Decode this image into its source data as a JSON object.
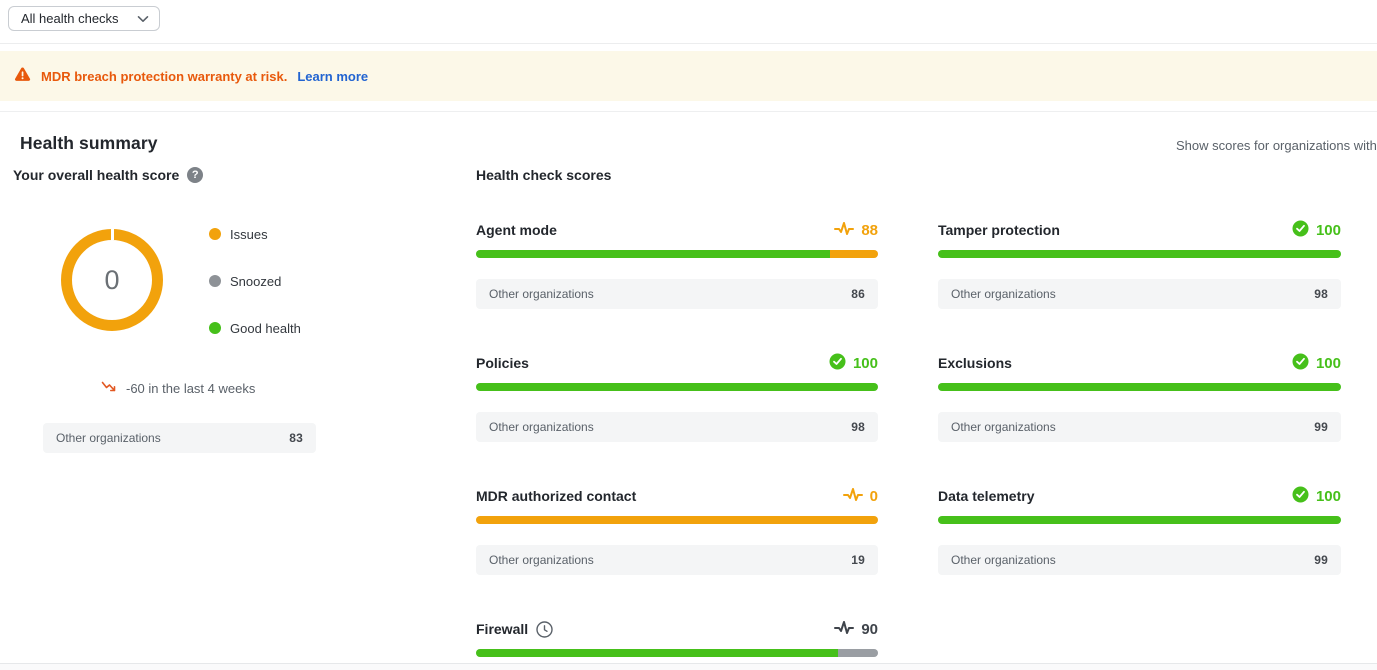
{
  "filter": {
    "value": "All health checks",
    "chevron_icon": "chevron-down"
  },
  "banner": {
    "warning_icon": "warning-triangle",
    "text": "MDR breach protection warranty at risk.",
    "link": "Learn more"
  },
  "header": {
    "title": "Health summary",
    "filter_note": "Show scores for organizations with"
  },
  "summary": {
    "subtitle": "Your overall health score",
    "help_icon": "question-mark",
    "donut": {
      "center_value": "0",
      "ring_color": "#F2A20C"
    },
    "legend": [
      {
        "label": "Issues",
        "color": "#F2A20C"
      },
      {
        "label": "Snoozed",
        "color": "#8E9297"
      },
      {
        "label": "Good health",
        "color": "#46C01A"
      }
    ],
    "trend": {
      "icon": "trending-down",
      "text": "-60 in the last 4 weeks"
    },
    "benchmark": {
      "label": "Other organizations",
      "value": "83"
    }
  },
  "health_checks": {
    "title": "Health check scores",
    "benchmark_label": "Other organizations",
    "cards": [
      {
        "title": "Agent mode",
        "score": 88,
        "score_display": "88",
        "status": "issues",
        "icon": "pulse",
        "benchmark": "86"
      },
      {
        "title": "Tamper protection",
        "score": 100,
        "score_display": "100",
        "status": "good",
        "icon": "check-circle",
        "benchmark": "98"
      },
      {
        "title": "Policies",
        "score": 100,
        "score_display": "100",
        "status": "good",
        "icon": "check-circle",
        "benchmark": "98"
      },
      {
        "title": "Exclusions",
        "score": 100,
        "score_display": "100",
        "status": "good",
        "icon": "check-circle",
        "benchmark": "99"
      },
      {
        "title": "MDR authorized contact",
        "score": 0,
        "score_display": "0",
        "status": "issues",
        "icon": "pulse",
        "benchmark": "19"
      },
      {
        "title": "Data telemetry",
        "score": 100,
        "score_display": "100",
        "status": "good",
        "icon": "check-circle",
        "benchmark": "99"
      },
      {
        "title": "Firewall",
        "score": 90,
        "score_display": "90",
        "status": "snoozed",
        "icon": "pulse",
        "snoozed_icon": "clock",
        "benchmark": null
      }
    ]
  },
  "colors": {
    "green": "#46C01A",
    "orange": "#F2A20C",
    "gray_bar": "#9A9EA3",
    "dark": "#3F444B",
    "warning": "#E8590C",
    "link": "#2264D1"
  }
}
